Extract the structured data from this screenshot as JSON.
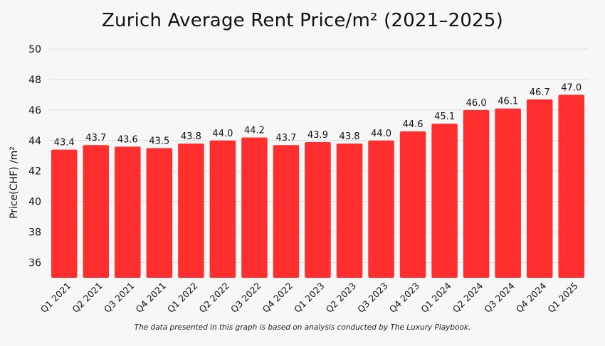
{
  "chart_data": {
    "type": "bar",
    "title": "Zurich Average Rent Price/m² (2021–2025)",
    "xlabel": "",
    "ylabel": "Price(CHF) /m²",
    "ylim": [
      35,
      50
    ],
    "yticks": [
      36,
      38,
      40,
      42,
      44,
      46,
      48,
      50
    ],
    "grid": true,
    "legend": "none",
    "categories": [
      "Q1 2021",
      "Q2 2021",
      "Q3 2021",
      "Q4 2021",
      "Q1 2022",
      "Q2 2022",
      "Q3 2022",
      "Q4 2022",
      "Q1 2023",
      "Q2 2023",
      "Q3 2023",
      "Q4 2023",
      "Q1 2024",
      "Q2 2024",
      "Q3 2024",
      "Q4 2024",
      "Q1 2025"
    ],
    "values": [
      43.4,
      43.7,
      43.6,
      43.5,
      43.8,
      44.0,
      44.2,
      43.7,
      43.9,
      43.8,
      44.0,
      44.6,
      45.1,
      46.0,
      46.1,
      46.7,
      47.0
    ],
    "bar_color": "#ff2f2f",
    "grid_color": "#dddddd"
  },
  "footnote": "The data presented in this graph is based on analysis conducted by The Luxury Playbook."
}
